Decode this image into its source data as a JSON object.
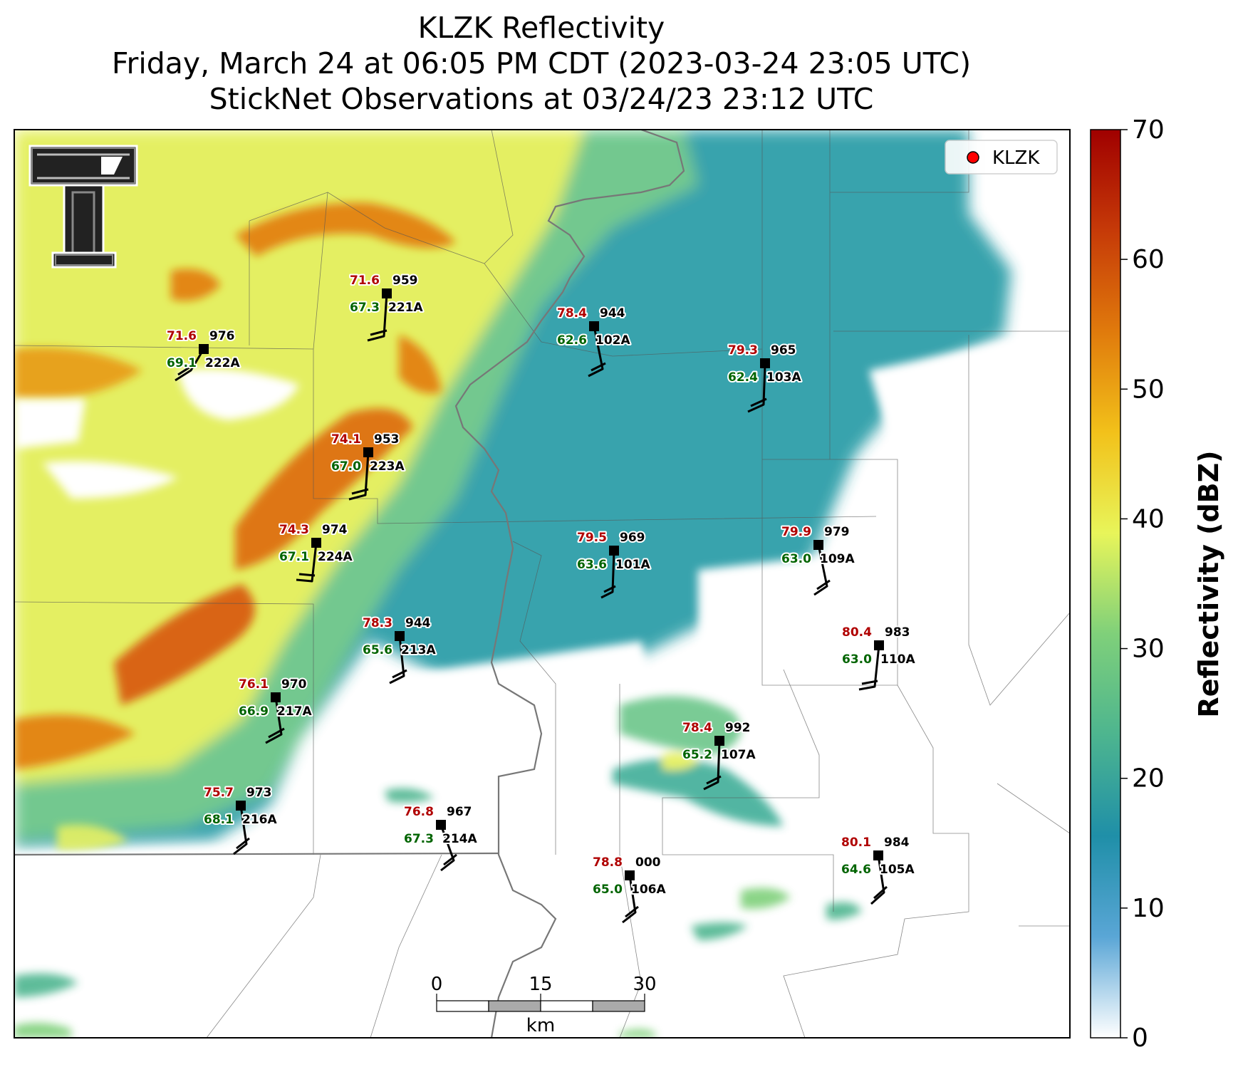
{
  "title": {
    "line1": "KLZK Reflectivity",
    "line2": "Friday, March 24 at 06:05 PM CDT (2023-03-24 23:05 UTC)",
    "line3": "StickNet Observations at 03/24/23 23:12 UTC"
  },
  "legend": {
    "label": "KLZK",
    "marker_color": "#ff0000"
  },
  "colorbar": {
    "title": "Reflectivity (dBZ)",
    "ticks": [
      "0",
      "10",
      "20",
      "30",
      "40",
      "50",
      "60",
      "70"
    ],
    "min": 0,
    "max": 70,
    "colors": [
      "#ffffff",
      "#5aa6d6",
      "#1f8fa8",
      "#4db58f",
      "#7fd07a",
      "#e8f55a",
      "#f2c11a",
      "#e07a0c",
      "#c63a08",
      "#a00000"
    ]
  },
  "scale_bar": {
    "ticks": [
      "0",
      "15",
      "30"
    ],
    "unit": "km"
  },
  "stations": [
    {
      "id": "221A",
      "temp": "71.6",
      "dew": "67.3",
      "pres": "959"
    },
    {
      "id": "222A",
      "temp": "71.6",
      "dew": "69.1",
      "pres": "976"
    },
    {
      "id": "102A",
      "temp": "78.4",
      "dew": "62.6",
      "pres": "944"
    },
    {
      "id": "103A",
      "temp": "79.3",
      "dew": "62.4",
      "pres": "965"
    },
    {
      "id": "223A",
      "temp": "74.1",
      "dew": "67.0",
      "pres": "953"
    },
    {
      "id": "224A",
      "temp": "74.3",
      "dew": "67.1",
      "pres": "974"
    },
    {
      "id": "101A",
      "temp": "79.5",
      "dew": "63.6",
      "pres": "969"
    },
    {
      "id": "109A",
      "temp": "79.9",
      "dew": "63.0",
      "pres": "979"
    },
    {
      "id": "213A",
      "temp": "78.3",
      "dew": "65.6",
      "pres": "944"
    },
    {
      "id": "110A",
      "temp": "80.4",
      "dew": "63.0",
      "pres": "983"
    },
    {
      "id": "217A",
      "temp": "76.1",
      "dew": "66.9",
      "pres": "970"
    },
    {
      "id": "107A",
      "temp": "78.4",
      "dew": "65.2",
      "pres": "992"
    },
    {
      "id": "216A",
      "temp": "75.7",
      "dew": "68.1",
      "pres": "973"
    },
    {
      "id": "214A",
      "temp": "76.8",
      "dew": "67.3",
      "pres": "967"
    },
    {
      "id": "106A",
      "temp": "78.8",
      "dew": "65.0",
      "pres": "000"
    },
    {
      "id": "105A",
      "temp": "80.1",
      "dew": "64.6",
      "pres": "984"
    }
  ]
}
